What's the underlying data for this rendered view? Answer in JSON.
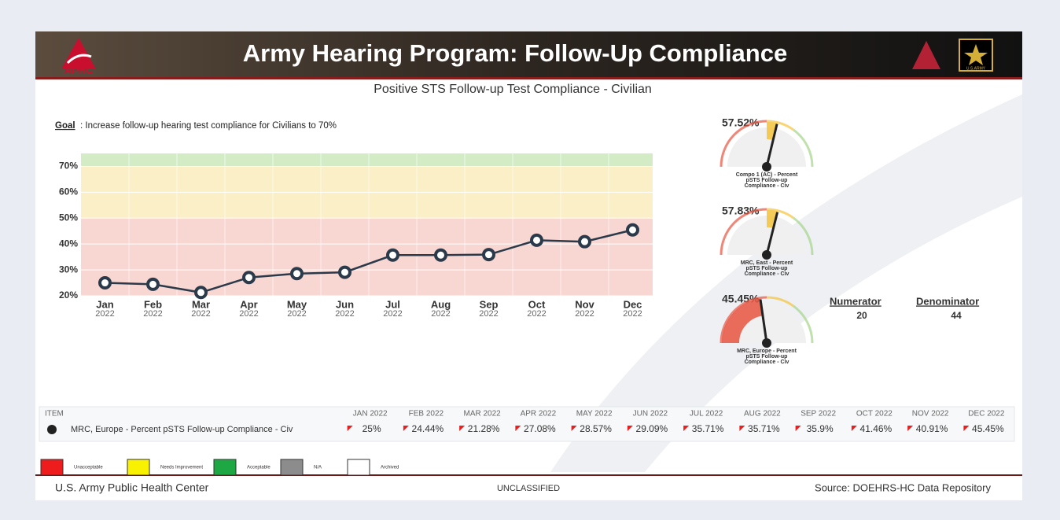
{
  "header": {
    "title": "Army Hearing Program: Follow-Up Compliance",
    "logo": "APHC",
    "badge": "U.S.ARMY"
  },
  "chart_data": {
    "type": "line",
    "title": "Positive STS Follow-up Test Compliance - Civilian",
    "goal_label": "Goal",
    "goal_text": ": Increase follow-up hearing test compliance for Civilians to 70%",
    "categories": [
      "Jan",
      "Feb",
      "Mar",
      "Apr",
      "May",
      "Jun",
      "Jul",
      "Aug",
      "Sep",
      "Oct",
      "Nov",
      "Dec"
    ],
    "category_years": [
      "2022",
      "2022",
      "2022",
      "2022",
      "2022",
      "2022",
      "2022",
      "2022",
      "2022",
      "2022",
      "2022",
      "2022"
    ],
    "series": [
      {
        "name": "MRC, Europe - Percent pSTS Follow-up Compliance - Civ",
        "color": "#2b3a4a",
        "values": [
          25,
          24.44,
          21.28,
          27.08,
          28.57,
          29.09,
          35.71,
          35.71,
          35.9,
          41.46,
          40.91,
          45.45
        ],
        "value_labels": [
          "25%",
          "24.44%",
          "21.28%",
          "27.08%",
          "28.57%",
          "29.09%",
          "35.71%",
          "35.71%",
          "35.9%",
          "41.46%",
          "40.91%",
          "45.45%"
        ]
      }
    ],
    "ylim": [
      20,
      75
    ],
    "yticks": [
      {
        "value": 20,
        "label": "20%"
      },
      {
        "value": 30,
        "label": "30%"
      },
      {
        "value": 40,
        "label": "40%"
      },
      {
        "value": 50,
        "label": "50%"
      },
      {
        "value": 60,
        "label": "60%"
      },
      {
        "value": 70,
        "label": "70%"
      }
    ],
    "bands": [
      {
        "from": 20,
        "to": 50,
        "color": "#f8d6d2"
      },
      {
        "from": 50,
        "to": 70,
        "color": "#fbefc8"
      },
      {
        "from": 70,
        "to": 75,
        "color": "#d3ecc6"
      }
    ]
  },
  "gauges": {
    "lim": [
      0,
      100
    ],
    "bands": [
      {
        "from": 0,
        "to": 50,
        "color": "#e8533f"
      },
      {
        "from": 50,
        "to": 70,
        "color": "#f5c33b"
      },
      {
        "from": 70,
        "to": 100,
        "color": "#a5d48a"
      }
    ],
    "items": [
      {
        "value": 57.52,
        "label": "57.52%",
        "caption": [
          "Compo 1 (AC) - Percent",
          "pSTS Follow-up",
          "Compliance - Civ"
        ]
      },
      {
        "value": 57.83,
        "label": "57.83%",
        "caption": [
          "MRC, East - Percent",
          "pSTS Follow-up",
          "Compliance - Civ"
        ]
      },
      {
        "value": 45.45,
        "label": "45.45%",
        "caption": [
          "MRC, Europe - Percent",
          "pSTS Follow-up",
          "Compliance - Civ"
        ]
      }
    ]
  },
  "counts": {
    "numerator_label": "Numerator",
    "numerator": "20",
    "denominator_label": "Denominator",
    "denominator": "44"
  },
  "table": {
    "item_header": "ITEM",
    "columns": [
      "JAN 2022",
      "FEB 2022",
      "MAR 2022",
      "APR 2022",
      "MAY 2022",
      "JUN 2022",
      "JUL 2022",
      "AUG 2022",
      "SEP 2022",
      "OCT 2022",
      "NOV 2022",
      "DEC 2022"
    ]
  },
  "legend": [
    {
      "label": "Unacceptable",
      "color": "#ee1c1c"
    },
    {
      "label": "Needs Improvement",
      "color": "#f8f200"
    },
    {
      "label": "Acceptable",
      "color": "#1ea843"
    },
    {
      "label": "N/A",
      "color": "#8c8c8c"
    },
    {
      "label": "Archived",
      "color": "#ffffff"
    }
  ],
  "footer": {
    "left": "U.S. Army Public Health Center",
    "center": "UNCLASSIFIED",
    "right": "Source: DOEHRS-HC Data Repository"
  }
}
